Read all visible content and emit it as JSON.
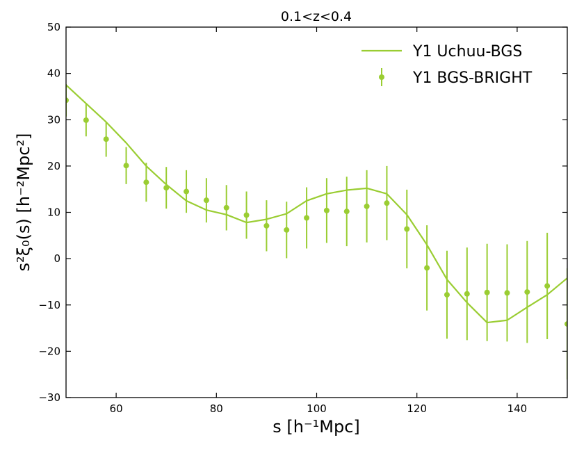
{
  "chart_data": {
    "type": "line",
    "title": "0.1<z<0.4",
    "xlabel": "s [h⁻¹Mpc]",
    "ylabel": "s²ξ₀(s) [h⁻²Mpc²]",
    "xlim": [
      50,
      150
    ],
    "ylim": [
      -30,
      50
    ],
    "xticks": [
      60,
      80,
      100,
      120,
      140
    ],
    "yticks": [
      -30,
      -20,
      -10,
      0,
      10,
      20,
      30,
      40,
      50
    ],
    "legend_position": "top-right",
    "grid": false,
    "series": [
      {
        "name": "Y1 Uchuu-BGS",
        "kind": "line",
        "color": "#9acd32",
        "x": [
          50,
          54,
          58,
          62,
          66,
          70,
          74,
          78,
          82,
          86,
          90,
          94,
          98,
          102,
          106,
          110,
          114,
          118,
          122,
          126,
          130,
          134,
          138,
          142,
          146,
          150
        ],
        "y": [
          37.5,
          33.5,
          29.5,
          25.0,
          20.0,
          16.0,
          12.5,
          10.5,
          9.5,
          7.8,
          8.5,
          9.7,
          12.5,
          14.0,
          14.8,
          15.2,
          14.0,
          9.5,
          3.0,
          -4.5,
          -9.5,
          -13.8,
          -13.3,
          -10.5,
          -7.8,
          -4.2
        ]
      },
      {
        "name": "Y1 BGS-BRIGHT",
        "kind": "errorbar",
        "color": "#9acd32",
        "x": [
          50,
          54,
          58,
          62,
          66,
          70,
          74,
          78,
          82,
          86,
          90,
          94,
          98,
          102,
          106,
          110,
          114,
          118,
          122,
          126,
          130,
          134,
          138,
          142,
          146,
          150
        ],
        "y": [
          34.2,
          29.9,
          25.8,
          20.1,
          16.5,
          15.3,
          14.5,
          12.6,
          11.0,
          9.4,
          7.1,
          6.2,
          8.8,
          10.4,
          10.2,
          11.3,
          12.0,
          6.4,
          -2.0,
          -7.8,
          -7.6,
          -7.3,
          -7.4,
          -7.2,
          -5.9,
          -14.1
        ],
        "yerr": [
          3.5,
          3.5,
          3.8,
          4.0,
          4.2,
          4.5,
          4.6,
          4.8,
          4.9,
          5.1,
          5.5,
          6.1,
          6.6,
          7.0,
          7.5,
          7.8,
          8.0,
          8.5,
          9.2,
          9.5,
          10.0,
          10.5,
          10.5,
          11.0,
          11.5,
          12.0
        ]
      }
    ]
  }
}
